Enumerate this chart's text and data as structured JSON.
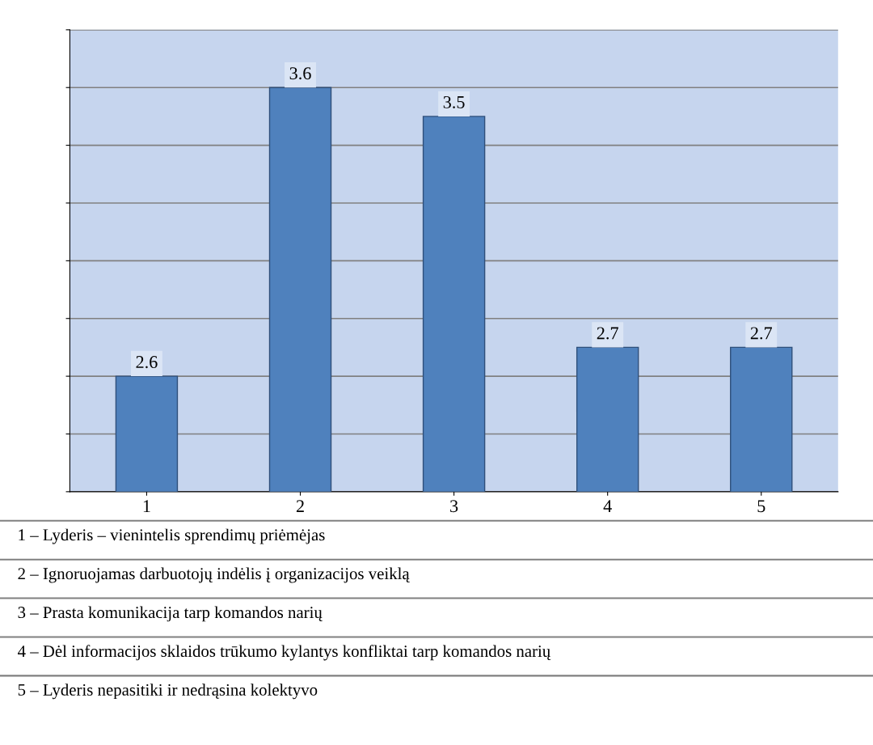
{
  "chart_data": {
    "type": "bar",
    "categories": [
      "1",
      "2",
      "3",
      "4",
      "5"
    ],
    "values": [
      2.6,
      3.6,
      3.5,
      2.7,
      2.7
    ],
    "color": "#4f81bd",
    "data_labels": true,
    "ylim": [
      2.2,
      3.8
    ],
    "yticks": [
      {
        "value": 2.2,
        "label": null
      },
      {
        "value": 2.4,
        "label": null
      },
      {
        "value": 2.6,
        "label": null
      },
      {
        "value": 2.8,
        "label": null
      },
      {
        "value": 3.0,
        "label": null
      },
      {
        "value": 3.2,
        "label": null
      },
      {
        "value": 3.4,
        "label": null
      },
      {
        "value": 3.6,
        "label": null
      },
      {
        "value": 3.8,
        "label": null
      }
    ],
    "tick_labels": "x",
    "grid": "y",
    "annotations": [
      "1 – Lyderis – vienintelis sprendimų priėmėjas",
      "2 – Ignoruojamas darbuotojų indėlis į organizacijos veiklą",
      "3 – Prasta komunikacija tarp komandos narių",
      "4 – Dėl informacijos sklaidos trūkumo kylantys konfliktai tarp komandos narių",
      "5 – Lyderis nepasitiki ir nedrąsina kolektyvo"
    ]
  }
}
